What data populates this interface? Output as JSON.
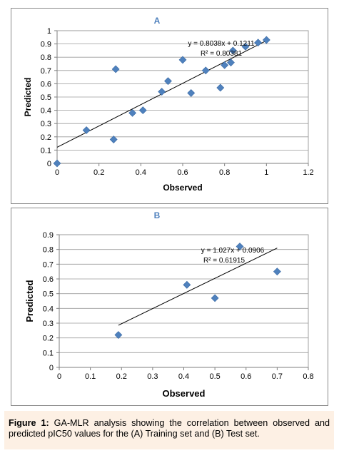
{
  "chart_data": [
    {
      "type": "scatter",
      "title": "A",
      "xlabel": "Observed",
      "ylabel": "Predicted",
      "xlim": [
        0,
        1.2
      ],
      "ylim": [
        0,
        1
      ],
      "xticks": [
        "0",
        "0.2",
        "0.4",
        "0.6",
        "0.8",
        "1",
        "1.2"
      ],
      "yticks": [
        "0",
        "0.1",
        "0.2",
        "0.3",
        "0.4",
        "0.5",
        "0.6",
        "0.7",
        "0.8",
        "0.9",
        "1"
      ],
      "grid": "horizontal",
      "marker_color": "#4f81bd",
      "points": [
        {
          "x": 0.0,
          "y": 0.0
        },
        {
          "x": 0.14,
          "y": 0.25
        },
        {
          "x": 0.27,
          "y": 0.18
        },
        {
          "x": 0.28,
          "y": 0.71
        },
        {
          "x": 0.36,
          "y": 0.38
        },
        {
          "x": 0.41,
          "y": 0.4
        },
        {
          "x": 0.5,
          "y": 0.54
        },
        {
          "x": 0.53,
          "y": 0.62
        },
        {
          "x": 0.6,
          "y": 0.78
        },
        {
          "x": 0.64,
          "y": 0.53
        },
        {
          "x": 0.71,
          "y": 0.7
        },
        {
          "x": 0.78,
          "y": 0.57
        },
        {
          "x": 0.8,
          "y": 0.74
        },
        {
          "x": 0.83,
          "y": 0.76
        },
        {
          "x": 0.84,
          "y": 0.85
        },
        {
          "x": 0.9,
          "y": 0.88
        },
        {
          "x": 0.96,
          "y": 0.91
        },
        {
          "x": 1.0,
          "y": 0.93
        }
      ],
      "trendline": {
        "slope": 0.8038,
        "intercept": 0.1211,
        "x_range": [
          0,
          1.0
        ]
      },
      "equation": "y = 0.8038x + 0.1211",
      "r2_label": "R² = 0.80381"
    },
    {
      "type": "scatter",
      "title": "B",
      "xlabel": "Observed",
      "ylabel": "Predicted",
      "xlim": [
        0,
        0.8
      ],
      "ylim": [
        0,
        0.9
      ],
      "xticks": [
        "0",
        "0.1",
        "0.2",
        "0.3",
        "0.4",
        "0.5",
        "0.6",
        "0.7",
        "0.8"
      ],
      "yticks": [
        "0",
        "0.1",
        "0.2",
        "0.3",
        "0.4",
        "0.5",
        "0.6",
        "0.7",
        "0.8",
        "0.9"
      ],
      "grid": "horizontal",
      "marker_color": "#4f81bd",
      "points": [
        {
          "x": 0.19,
          "y": 0.22
        },
        {
          "x": 0.41,
          "y": 0.56
        },
        {
          "x": 0.5,
          "y": 0.47
        },
        {
          "x": 0.58,
          "y": 0.82
        },
        {
          "x": 0.7,
          "y": 0.65
        }
      ],
      "trendline": {
        "slope": 1.027,
        "intercept": 0.0906,
        "x_range": [
          0.19,
          0.7
        ]
      },
      "equation": "y = 1.027x + 0.0906",
      "r2_label": "R² = 0.61915"
    }
  ],
  "caption": {
    "label": "Figure 1:",
    "text": "GA-MLR analysis showing the correlation between observed and predicted pIC50 values for the (A) Training set and (B) Test set."
  }
}
